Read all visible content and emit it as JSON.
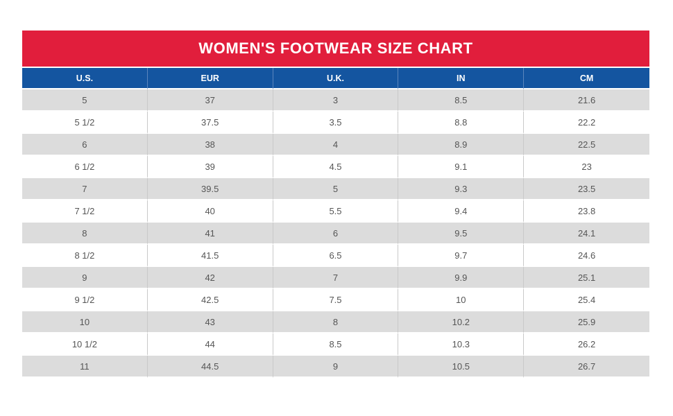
{
  "title": "WOMEN'S FOOTWEAR SIZE CHART",
  "colors": {
    "title_bar_red": "#e11e3c",
    "header_blue": "#1455a0",
    "row_gray": "#dcdcdc",
    "cell_text": "#555555"
  },
  "chart_data": {
    "type": "table",
    "title": "WOMEN'S FOOTWEAR SIZE CHART",
    "columns": [
      "U.S.",
      "EUR",
      "U.K.",
      "IN",
      "CM"
    ],
    "rows": [
      [
        "5",
        "37",
        "3",
        "8.5",
        "21.6"
      ],
      [
        "5 1/2",
        "37.5",
        "3.5",
        "8.8",
        "22.2"
      ],
      [
        "6",
        "38",
        "4",
        "8.9",
        "22.5"
      ],
      [
        "6 1/2",
        "39",
        "4.5",
        "9.1",
        "23"
      ],
      [
        "7",
        "39.5",
        "5",
        "9.3",
        "23.5"
      ],
      [
        "7 1/2",
        "40",
        "5.5",
        "9.4",
        "23.8"
      ],
      [
        "8",
        "41",
        "6",
        "9.5",
        "24.1"
      ],
      [
        "8 1/2",
        "41.5",
        "6.5",
        "9.7",
        "24.6"
      ],
      [
        "9",
        "42",
        "7",
        "9.9",
        "25.1"
      ],
      [
        "9 1/2",
        "42.5",
        "7.5",
        "10",
        "25.4"
      ],
      [
        "10",
        "43",
        "8",
        "10.2",
        "25.9"
      ],
      [
        "10 1/2",
        "44",
        "8.5",
        "10.3",
        "26.2"
      ],
      [
        "11",
        "44.5",
        "9",
        "10.5",
        "26.7"
      ]
    ]
  }
}
